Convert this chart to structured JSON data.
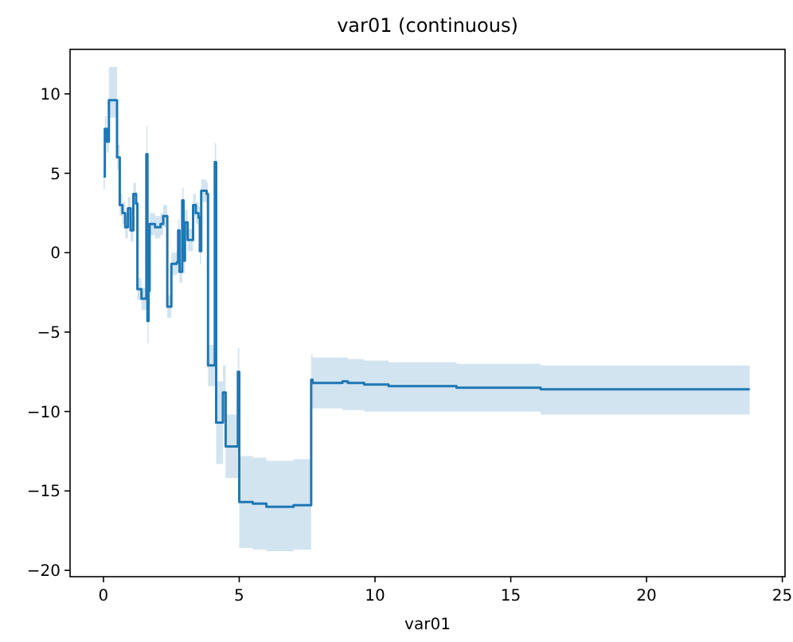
{
  "chart_data": {
    "type": "step",
    "title": "var01 (continuous)",
    "xlabel": "var01",
    "xlim": [
      -1.23,
      25.1
    ],
    "ylim": [
      -20.4,
      12.8
    ],
    "xticks": [
      0,
      5,
      10,
      15,
      20,
      25
    ],
    "yticks": [
      -20,
      -15,
      -10,
      -5,
      0,
      5,
      10
    ],
    "grid": false,
    "series": [
      {
        "color": "#1f77b4",
        "x": [
          0,
          0.05,
          0.12,
          0.2,
          0.5,
          0.6,
          0.7,
          0.8,
          0.9,
          1.0,
          1.1,
          1.2,
          1.25,
          1.4,
          1.58,
          1.62,
          1.66,
          1.7,
          1.9,
          2.1,
          2.2,
          2.35,
          2.5,
          2.7,
          2.75,
          2.8,
          2.9,
          2.95,
          3.0,
          3.1,
          3.3,
          3.4,
          3.5,
          3.55,
          3.6,
          3.8,
          3.85,
          4.1,
          4.15,
          4.4,
          4.5,
          4.95,
          5.0,
          5.5,
          6.0,
          7.0,
          7.65,
          7.7,
          8.8,
          9.0,
          9.6,
          10.5,
          13.0,
          16.1,
          23.8
        ],
        "values": [
          4.8,
          7.8,
          7.0,
          9.6,
          6.0,
          3.0,
          2.5,
          1.6,
          2.8,
          1.4,
          3.7,
          3.1,
          -2.3,
          -2.9,
          6.2,
          -4.3,
          -2.4,
          1.8,
          1.6,
          1.8,
          2.3,
          -3.4,
          -0.7,
          -0.6,
          1.4,
          -1.2,
          3.3,
          -0.5,
          1.9,
          0.8,
          3.0,
          2.5,
          2.2,
          0.1,
          3.9,
          3.7,
          -7.1,
          5.7,
          -10.7,
          -8.8,
          -12.2,
          -7.5,
          -15.7,
          -15.8,
          -16.0,
          -15.9,
          -8.0,
          -8.2,
          -8.1,
          -8.2,
          -8.3,
          -8.4,
          -8.5,
          -8.6,
          -8.6
        ],
        "lower": [
          4.0,
          7.0,
          6.3,
          8.5,
          5.2,
          2.3,
          1.8,
          0.9,
          2.1,
          0.7,
          3.0,
          2.4,
          -3.0,
          -3.6,
          4.5,
          -5.7,
          -3.2,
          1.1,
          0.9,
          1.1,
          1.6,
          -4.1,
          -1.4,
          -1.3,
          0.7,
          -1.9,
          2.5,
          -1.3,
          1.1,
          0.1,
          2.3,
          1.8,
          1.5,
          -0.7,
          3.2,
          3.0,
          -8.4,
          4.5,
          -13.3,
          -10.5,
          -14.2,
          -9.0,
          -18.6,
          -18.7,
          -18.8,
          -18.7,
          -9.7,
          -9.8,
          -9.9,
          -9.9,
          -10.0,
          -10.0,
          -10.0,
          -10.2,
          -10.2
        ],
        "upper": [
          5.6,
          8.6,
          7.7,
          11.7,
          6.8,
          3.7,
          3.2,
          2.3,
          3.5,
          2.1,
          4.4,
          3.8,
          -1.6,
          -2.2,
          8.0,
          -2.9,
          -1.6,
          2.5,
          2.3,
          2.5,
          3.0,
          -2.7,
          0.0,
          0.1,
          2.1,
          -0.5,
          4.1,
          0.3,
          2.7,
          1.5,
          3.7,
          3.2,
          2.9,
          0.9,
          4.6,
          4.4,
          -5.8,
          6.9,
          -8.1,
          -7.1,
          -10.2,
          -6.0,
          -12.8,
          -12.9,
          -13.1,
          -13.0,
          -6.4,
          -6.6,
          -6.6,
          -6.7,
          -6.8,
          -6.9,
          -7.0,
          -7.1,
          -7.1
        ]
      }
    ]
  }
}
